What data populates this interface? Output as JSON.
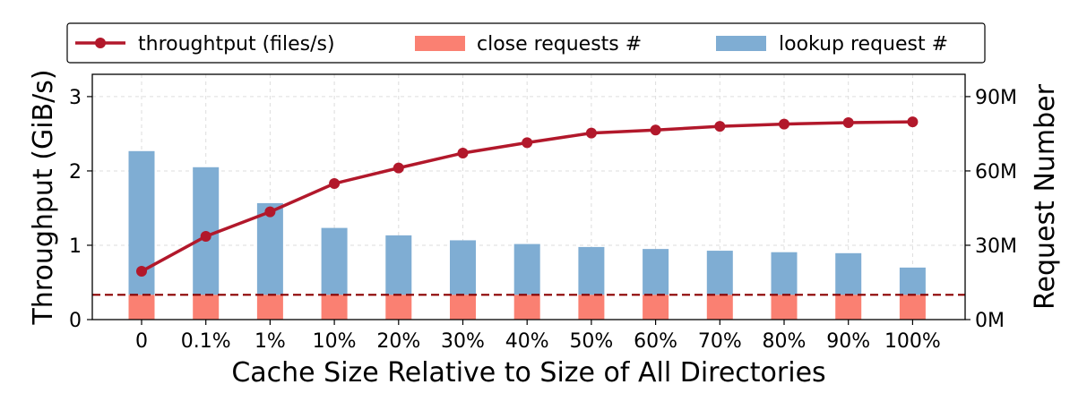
{
  "chart_data": {
    "type": "bar",
    "categories": [
      "0",
      "0.1%",
      "1%",
      "10%",
      "20%",
      "30%",
      "40%",
      "50%",
      "60%",
      "70%",
      "80%",
      "90%",
      "100%"
    ],
    "xlabel": "Cache Size Relative to Size of All Directories",
    "ylabel": "Throughput (GiB/s)",
    "y2label": "Request Number",
    "ylim": [
      0,
      3.3
    ],
    "y2lim": [
      0,
      99
    ],
    "yticks": [
      "0",
      "1",
      "2",
      "3"
    ],
    "y2ticks": [
      "0M",
      "30M",
      "60M",
      "90M"
    ],
    "grid": true,
    "legend_position": "top",
    "series": [
      {
        "name": "throughtput (files/s)",
        "type": "line",
        "axis": "left",
        "color": "#b2182b",
        "values": [
          0.65,
          1.12,
          1.45,
          1.83,
          2.04,
          2.24,
          2.38,
          2.51,
          2.55,
          2.6,
          2.63,
          2.65,
          2.66
        ]
      },
      {
        "name": "close requests #",
        "type": "bar",
        "axis": "right",
        "color": "#fa8072",
        "values": [
          10,
          10,
          10,
          10,
          10,
          10,
          10,
          10,
          10,
          10,
          10,
          10,
          10
        ]
      },
      {
        "name": "lookup request #",
        "type": "bar",
        "axis": "right",
        "color": "#7fadd3",
        "values": [
          68,
          61.5,
          47,
          37,
          34,
          32,
          30.5,
          29.3,
          28.5,
          27.8,
          27.2,
          26.8,
          21
        ]
      }
    ],
    "reference_line": {
      "axis": "right",
      "value": 10,
      "style": "dashed",
      "color": "#8b0000"
    }
  }
}
